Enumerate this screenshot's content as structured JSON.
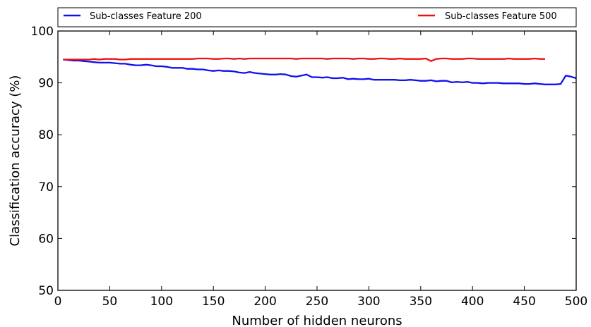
{
  "chart_data": {
    "type": "line",
    "xlabel": "Number of hidden neurons",
    "ylabel": "Classification accuracy (%)",
    "xlim": [
      0,
      500
    ],
    "ylim": [
      50,
      100
    ],
    "xticks": [
      0,
      50,
      100,
      150,
      200,
      250,
      300,
      350,
      400,
      450,
      500
    ],
    "yticks": [
      50,
      60,
      70,
      80,
      90,
      100
    ],
    "grid": false,
    "legend_placement": "top, above plot",
    "series": [
      {
        "name": "Sub-classes Feature 200",
        "color": "#1010ee",
        "x": [
          5,
          10,
          15,
          20,
          25,
          30,
          35,
          40,
          45,
          50,
          55,
          60,
          65,
          70,
          75,
          80,
          85,
          90,
          95,
          100,
          105,
          110,
          115,
          120,
          125,
          130,
          135,
          140,
          145,
          150,
          155,
          160,
          165,
          170,
          175,
          180,
          185,
          190,
          195,
          200,
          205,
          210,
          215,
          220,
          225,
          230,
          235,
          240,
          245,
          250,
          255,
          260,
          265,
          270,
          275,
          280,
          285,
          290,
          295,
          300,
          305,
          310,
          315,
          320,
          325,
          330,
          335,
          340,
          345,
          350,
          355,
          360,
          365,
          370,
          375,
          380,
          385,
          390,
          395,
          400,
          405,
          410,
          415,
          420,
          425,
          430,
          435,
          440,
          445,
          450,
          455,
          460,
          465,
          470,
          475,
          480,
          485,
          490,
          495,
          500
        ],
        "y": [
          94.5,
          94.4,
          94.3,
          94.3,
          94.2,
          94.1,
          94.0,
          93.9,
          93.9,
          93.9,
          93.8,
          93.7,
          93.7,
          93.5,
          93.4,
          93.4,
          93.5,
          93.4,
          93.2,
          93.2,
          93.1,
          92.9,
          92.9,
          92.9,
          92.7,
          92.7,
          92.6,
          92.6,
          92.4,
          92.3,
          92.4,
          92.3,
          92.3,
          92.2,
          92.0,
          91.9,
          92.1,
          91.9,
          91.8,
          91.7,
          91.6,
          91.6,
          91.7,
          91.6,
          91.3,
          91.2,
          91.4,
          91.6,
          91.1,
          91.1,
          91.0,
          91.1,
          90.9,
          90.9,
          91.0,
          90.7,
          90.8,
          90.7,
          90.7,
          90.8,
          90.6,
          90.6,
          90.6,
          90.6,
          90.6,
          90.5,
          90.5,
          90.6,
          90.5,
          90.4,
          90.4,
          90.5,
          90.3,
          90.4,
          90.4,
          90.1,
          90.2,
          90.1,
          90.2,
          90.0,
          90.0,
          89.9,
          90.0,
          90.0,
          90.0,
          89.9,
          89.9,
          89.9,
          89.9,
          89.8,
          89.8,
          89.9,
          89.8,
          89.7,
          89.7,
          89.7,
          89.8,
          91.4,
          91.2,
          90.9
        ]
      },
      {
        "name": "Sub-classes Feature 500",
        "color": "#ee1010",
        "x": [
          5,
          10,
          15,
          20,
          25,
          30,
          35,
          40,
          45,
          50,
          55,
          60,
          65,
          70,
          75,
          80,
          85,
          90,
          95,
          100,
          105,
          110,
          115,
          120,
          125,
          130,
          135,
          140,
          145,
          150,
          155,
          160,
          165,
          170,
          175,
          180,
          185,
          190,
          195,
          200,
          205,
          210,
          215,
          220,
          225,
          230,
          235,
          240,
          245,
          250,
          255,
          260,
          265,
          270,
          275,
          280,
          285,
          290,
          295,
          300,
          305,
          310,
          315,
          320,
          325,
          330,
          335,
          340,
          345,
          350,
          355,
          360,
          365,
          370,
          375,
          380,
          385,
          390,
          395,
          400,
          405,
          410,
          415,
          420,
          425,
          430,
          435,
          440,
          445,
          450,
          455,
          460,
          465,
          470
        ],
        "y": [
          94.5,
          94.5,
          94.5,
          94.5,
          94.5,
          94.5,
          94.6,
          94.5,
          94.6,
          94.6,
          94.6,
          94.5,
          94.5,
          94.6,
          94.6,
          94.6,
          94.6,
          94.6,
          94.6,
          94.6,
          94.6,
          94.6,
          94.6,
          94.6,
          94.6,
          94.6,
          94.7,
          94.7,
          94.7,
          94.6,
          94.6,
          94.7,
          94.7,
          94.6,
          94.7,
          94.6,
          94.7,
          94.7,
          94.7,
          94.7,
          94.7,
          94.7,
          94.7,
          94.7,
          94.7,
          94.6,
          94.7,
          94.7,
          94.7,
          94.7,
          94.7,
          94.6,
          94.7,
          94.7,
          94.7,
          94.7,
          94.6,
          94.7,
          94.7,
          94.6,
          94.6,
          94.7,
          94.7,
          94.6,
          94.6,
          94.7,
          94.6,
          94.6,
          94.6,
          94.6,
          94.7,
          94.2,
          94.6,
          94.7,
          94.7,
          94.6,
          94.6,
          94.6,
          94.7,
          94.7,
          94.6,
          94.6,
          94.6,
          94.6,
          94.6,
          94.6,
          94.7,
          94.6,
          94.6,
          94.6,
          94.6,
          94.7,
          94.6,
          94.6
        ]
      }
    ]
  }
}
